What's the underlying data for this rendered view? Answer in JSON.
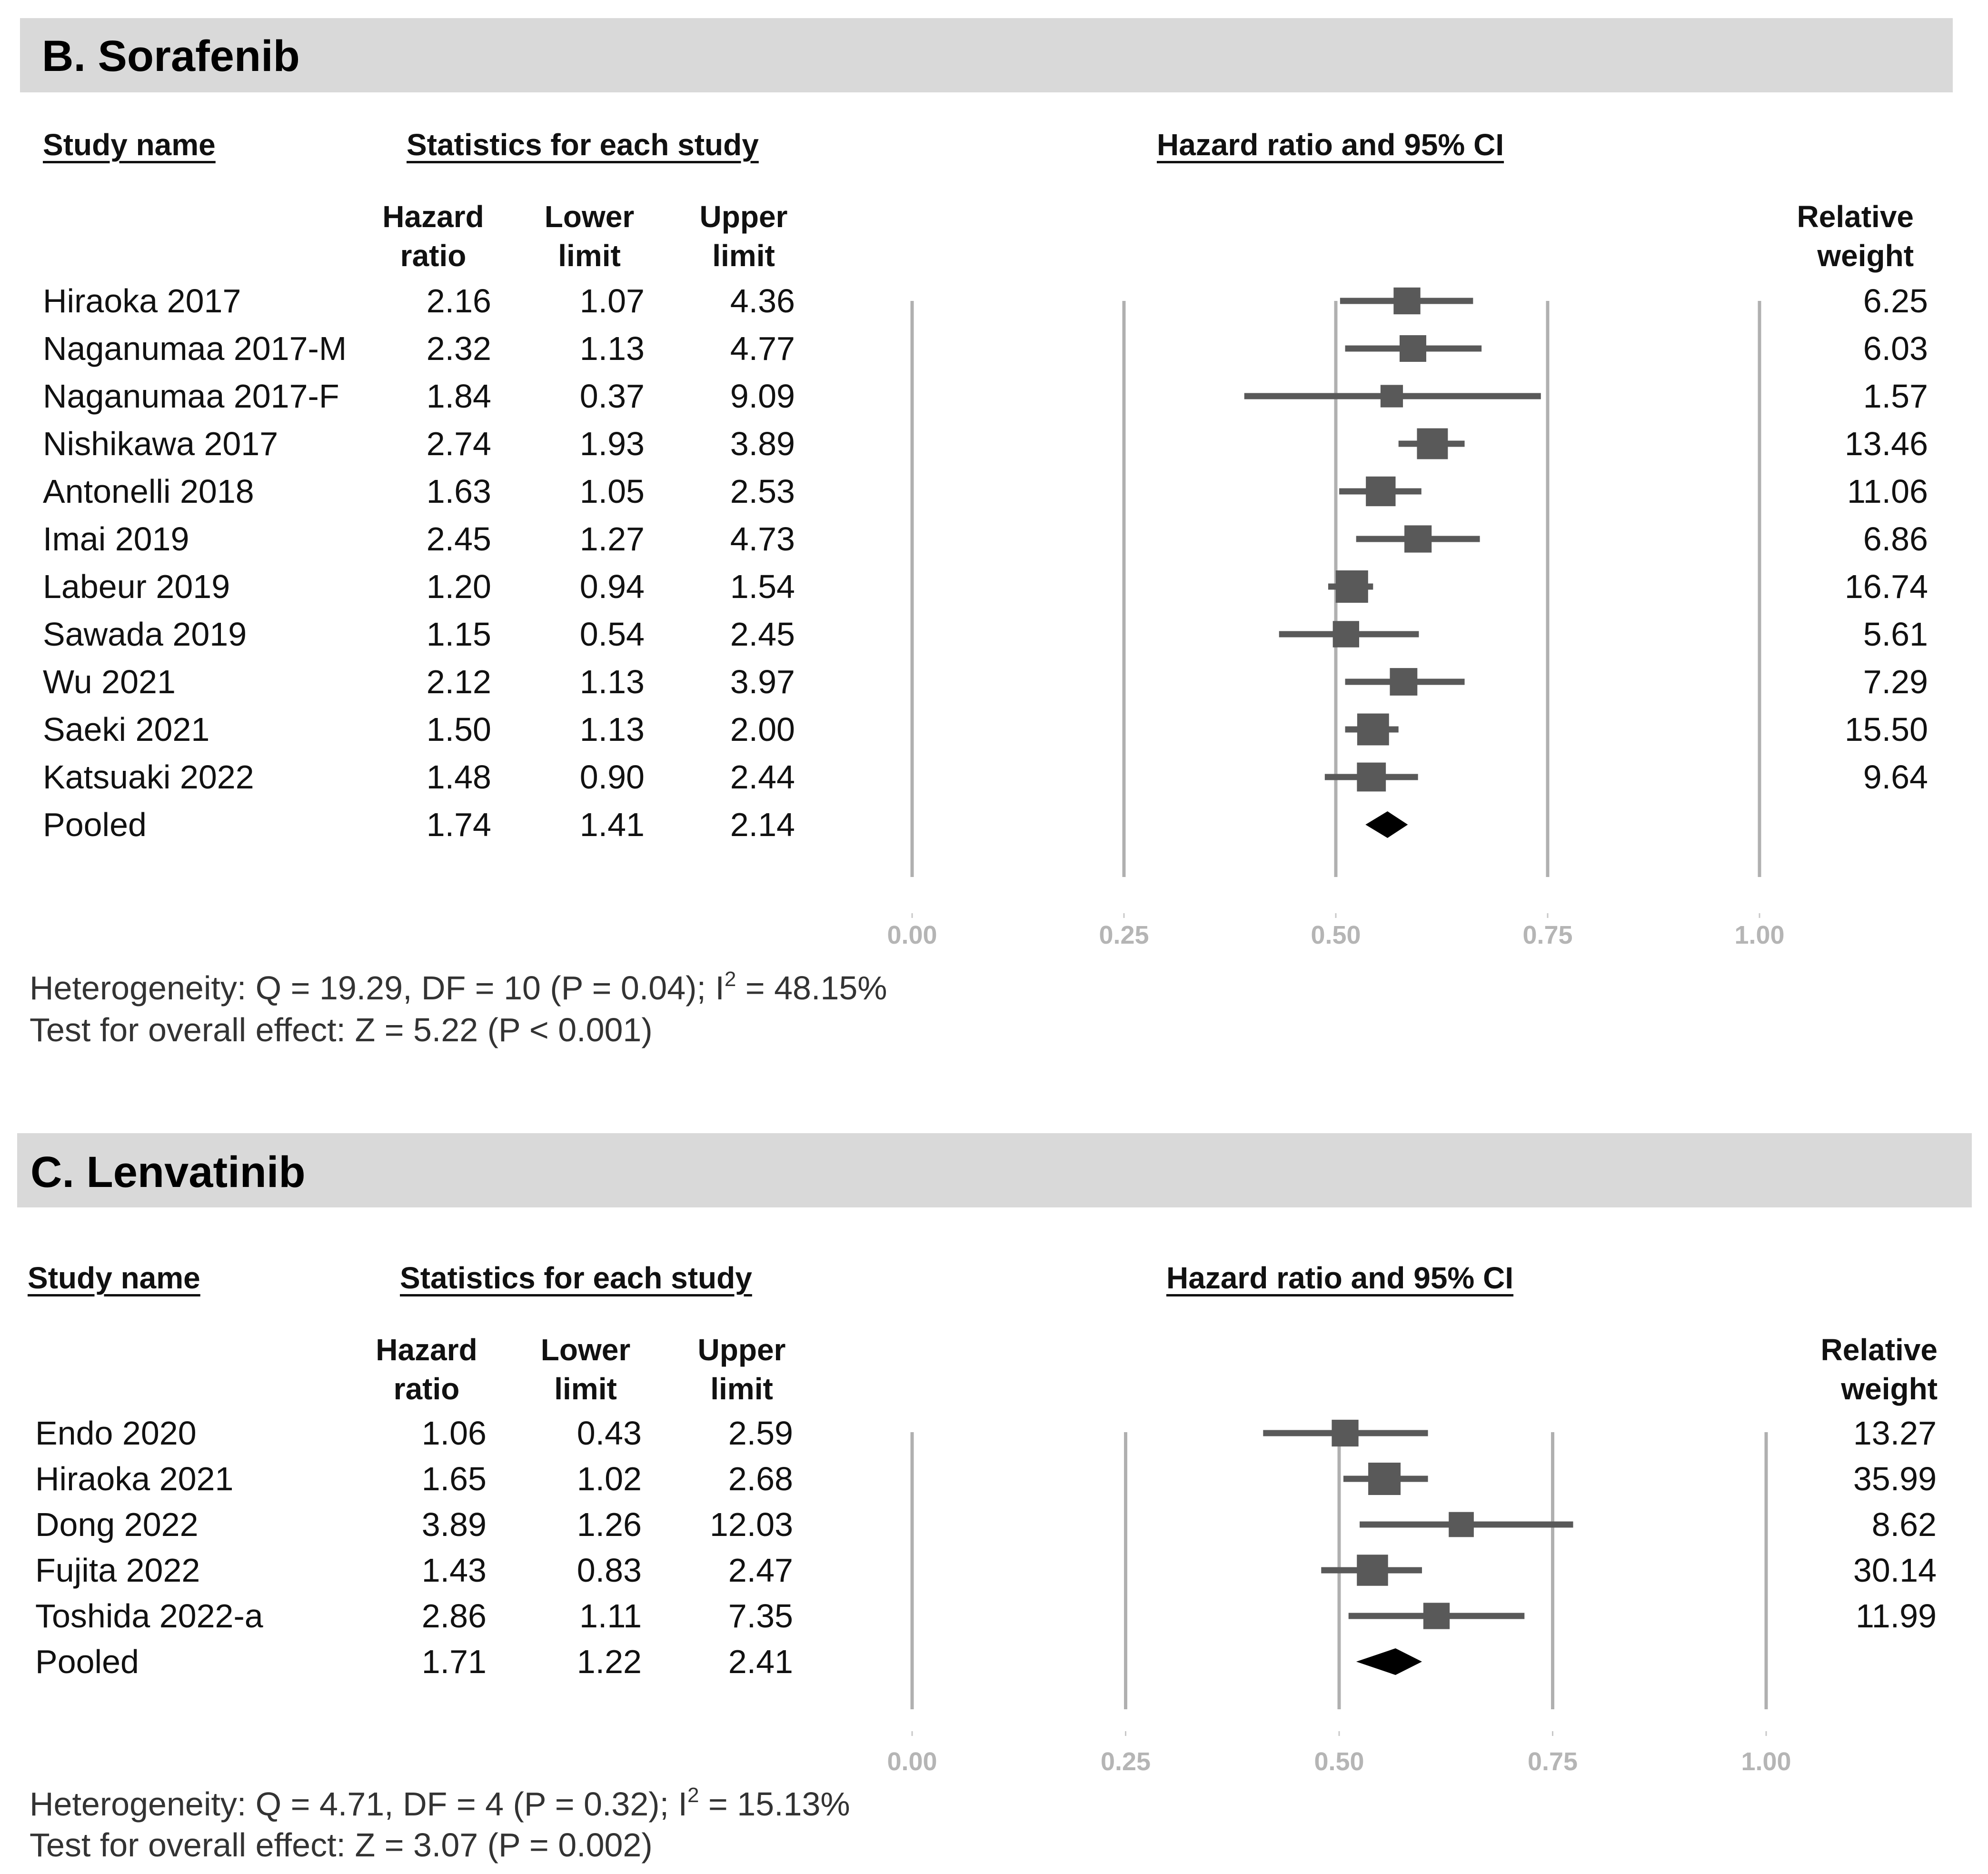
{
  "panels": [
    {
      "title": "B. Sorafenib",
      "headers": {
        "study_name": "Study name",
        "statistics": "Statistics for each study",
        "hazard_ratio_ci": "Hazard ratio and 95% CI",
        "hr_line1": "Hazard",
        "hr_line2": "ratio",
        "lower_line1": "Lower",
        "lower_line2": "limit",
        "upper_line1": "Upper",
        "upper_line2": "limit",
        "rw_line1": "Relative",
        "rw_line2": "weight"
      },
      "footer": {
        "heterogeneity_pre": "Heterogeneity: Q = 19.29, DF = 10 (P = 0.04); I",
        "heterogeneity_sup": "2",
        "heterogeneity_post": " = 48.15%",
        "overall_effect": "Test for overall effect: Z = 5.22 (P < 0.001)"
      }
    },
    {
      "title": "C. Lenvatinib",
      "headers": {
        "study_name": "Study name",
        "statistics": "Statistics for each study",
        "hazard_ratio_ci": "Hazard ratio and 95% CI",
        "hr_line1": "Hazard",
        "hr_line2": "ratio",
        "lower_line1": "Lower",
        "lower_line2": "limit",
        "upper_line1": "Upper",
        "upper_line2": "limit",
        "rw_line1": "Relative",
        "rw_line2": "weight"
      },
      "footer": {
        "heterogeneity_pre": "Heterogeneity: Q = 4.71, DF = 4 (P = 0.32); I",
        "heterogeneity_sup": "2",
        "heterogeneity_post": " = 15.13%",
        "overall_effect": "Test for overall effect: Z = 3.07 (P = 0.002)"
      }
    }
  ],
  "chart_data": [
    {
      "type": "forest",
      "title": "B. Sorafenib",
      "xlim": [
        0,
        1
      ],
      "x_ticks": [
        "0.00",
        "0.25",
        "0.50",
        "0.75",
        "1.00"
      ],
      "x_tick_values": [
        0,
        0.25,
        0.5,
        0.75,
        1.0
      ],
      "plot_points": [
        {
          "est": 0.584,
          "lo": 0.505,
          "hi": 0.662
        },
        {
          "est": 0.591,
          "lo": 0.511,
          "hi": 0.672
        },
        {
          "est": 0.566,
          "lo": 0.392,
          "hi": 0.742
        },
        {
          "est": 0.614,
          "lo": 0.574,
          "hi": 0.652
        },
        {
          "est": 0.553,
          "lo": 0.504,
          "hi": 0.601
        },
        {
          "est": 0.597,
          "lo": 0.524,
          "hi": 0.67
        },
        {
          "est": 0.519,
          "lo": 0.491,
          "hi": 0.544
        },
        {
          "est": 0.512,
          "lo": 0.433,
          "hi": 0.598
        },
        {
          "est": 0.58,
          "lo": 0.511,
          "hi": 0.652
        },
        {
          "est": 0.544,
          "lo": 0.511,
          "hi": 0.574
        },
        {
          "est": 0.542,
          "lo": 0.487,
          "hi": 0.597
        },
        {
          "est": 0.561,
          "lo": 0.535,
          "hi": 0.585,
          "pooled": true
        }
      ],
      "studies": [
        {
          "name": "Hiraoka 2017",
          "hr": "2.16",
          "lower": "1.07",
          "upper": "4.36",
          "weight": "6.25"
        },
        {
          "name": "Naganumaa 2017-M",
          "hr": "2.32",
          "lower": "1.13",
          "upper": "4.77",
          "weight": "6.03"
        },
        {
          "name": "Naganumaa 2017-F",
          "hr": "1.84",
          "lower": "0.37",
          "upper": "9.09",
          "weight": "1.57"
        },
        {
          "name": "Nishikawa 2017",
          "hr": "2.74",
          "lower": "1.93",
          "upper": "3.89",
          "weight": "13.46"
        },
        {
          "name": "Antonelli 2018",
          "hr": "1.63",
          "lower": "1.05",
          "upper": "2.53",
          "weight": "11.06"
        },
        {
          "name": "Imai 2019",
          "hr": "2.45",
          "lower": "1.27",
          "upper": "4.73",
          "weight": "6.86"
        },
        {
          "name": "Labeur 2019",
          "hr": "1.20",
          "lower": "0.94",
          "upper": "1.54",
          "weight": "16.74"
        },
        {
          "name": "Sawada 2019",
          "hr": "1.15",
          "lower": "0.54",
          "upper": "2.45",
          "weight": "5.61"
        },
        {
          "name": "Wu 2021",
          "hr": "2.12",
          "lower": "1.13",
          "upper": "3.97",
          "weight": "7.29"
        },
        {
          "name": "Saeki 2021",
          "hr": "1.50",
          "lower": "1.13",
          "upper": "2.00",
          "weight": "15.50"
        },
        {
          "name": "Katsuaki 2022",
          "hr": "1.48",
          "lower": "0.90",
          "upper": "2.44",
          "weight": "9.64"
        },
        {
          "name": "Pooled",
          "hr": "1.74",
          "lower": "1.41",
          "upper": "2.14",
          "weight": ""
        }
      ]
    },
    {
      "type": "forest",
      "title": "C. Lenvatinib",
      "xlim": [
        0,
        1
      ],
      "x_ticks": [
        "0.00",
        "0.25",
        "0.50",
        "0.75",
        "1.00"
      ],
      "x_tick_values": [
        0,
        0.25,
        0.5,
        0.75,
        1.0
      ],
      "plot_points": [
        {
          "est": 0.507,
          "lo": 0.411,
          "hi": 0.604
        },
        {
          "est": 0.553,
          "lo": 0.505,
          "hi": 0.604
        },
        {
          "est": 0.643,
          "lo": 0.524,
          "hi": 0.774
        },
        {
          "est": 0.539,
          "lo": 0.479,
          "hi": 0.597
        },
        {
          "est": 0.614,
          "lo": 0.511,
          "hi": 0.717
        },
        {
          "est": 0.566,
          "lo": 0.52,
          "hi": 0.597,
          "pooled": true
        }
      ],
      "studies": [
        {
          "name": "Endo 2020",
          "hr": "1.06",
          "lower": "0.43",
          "upper": "2.59",
          "weight": "13.27"
        },
        {
          "name": "Hiraoka 2021",
          "hr": "1.65",
          "lower": "1.02",
          "upper": "2.68",
          "weight": "35.99"
        },
        {
          "name": "Dong 2022",
          "hr": "3.89",
          "lower": "1.26",
          "upper": "12.03",
          "weight": "8.62"
        },
        {
          "name": "Fujita 2022",
          "hr": "1.43",
          "lower": "0.83",
          "upper": "2.47",
          "weight": "30.14"
        },
        {
          "name": "Toshida 2022-a",
          "hr": "2.86",
          "lower": "1.11",
          "upper": "7.35",
          "weight": "11.99"
        },
        {
          "name": "Pooled",
          "hr": "1.71",
          "lower": "1.22",
          "upper": "2.41",
          "weight": ""
        }
      ]
    }
  ]
}
